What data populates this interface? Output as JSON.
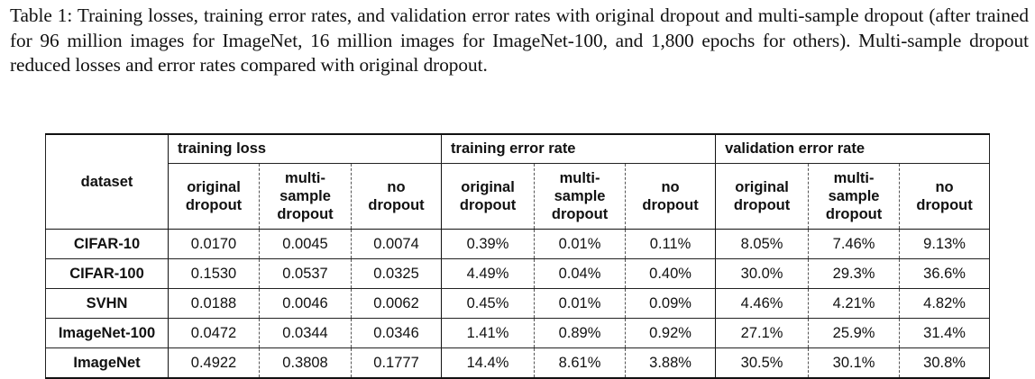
{
  "caption": {
    "label": "Table 1:",
    "text": "Training losses, training error rates, and validation error rates with original dropout and multi-sample dropout (after trained for 96 million images for ImageNet, 16 million images for ImageNet-100, and 1,800 epochs for others). Multi-sample dropout reduced losses and error rates compared with original dropout."
  },
  "table": {
    "dataset_header": "dataset",
    "groups": [
      "training loss",
      "training error rate",
      "validation error rate"
    ],
    "sub_headers": {
      "original": [
        "original",
        "dropout"
      ],
      "multi": [
        "multi-",
        "sample",
        "dropout"
      ],
      "none": [
        "no",
        "dropout"
      ]
    },
    "rows": [
      {
        "dataset": "CIFAR-10",
        "values": [
          "0.0170",
          "0.0045",
          "0.0074",
          "0.39%",
          "0.01%",
          "0.11%",
          "8.05%",
          "7.46%",
          "9.13%"
        ]
      },
      {
        "dataset": "CIFAR-100",
        "values": [
          "0.1530",
          "0.0537",
          "0.0325",
          "4.49%",
          "0.04%",
          "0.40%",
          "30.0%",
          "29.3%",
          "36.6%"
        ]
      },
      {
        "dataset": "SVHN",
        "values": [
          "0.0188",
          "0.0046",
          "0.0062",
          "0.45%",
          "0.01%",
          "0.09%",
          "4.46%",
          "4.21%",
          "4.82%"
        ]
      },
      {
        "dataset": "ImageNet-100",
        "values": [
          "0.0472",
          "0.0344",
          "0.0346",
          "1.41%",
          "0.89%",
          "0.92%",
          "27.1%",
          "25.9%",
          "31.4%"
        ]
      },
      {
        "dataset": "ImageNet",
        "values": [
          "0.4922",
          "0.3808",
          "0.1777",
          "14.4%",
          "8.61%",
          "3.88%",
          "30.5%",
          "30.1%",
          "30.8%"
        ]
      }
    ]
  }
}
